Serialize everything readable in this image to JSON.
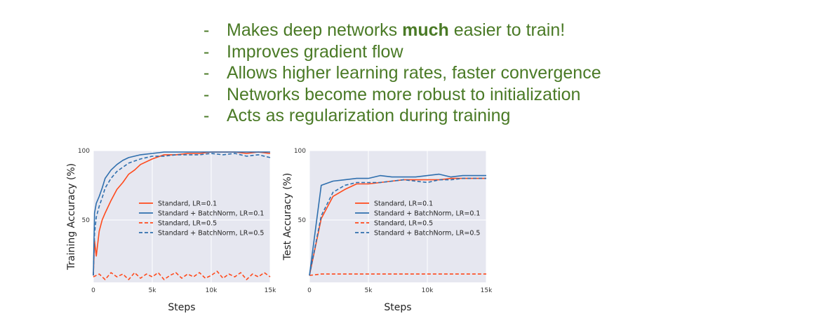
{
  "bullets": [
    {
      "prefix": "Makes deep networks ",
      "bold": "much",
      "suffix": " easier to train!"
    },
    {
      "prefix": "Improves gradient flow",
      "bold": "",
      "suffix": ""
    },
    {
      "prefix": "Allows higher learning rates, faster convergence",
      "bold": "",
      "suffix": ""
    },
    {
      "prefix": "Networks become more robust to initialization",
      "bold": "",
      "suffix": ""
    },
    {
      "prefix": "Acts as regularization during training",
      "bold": "",
      "suffix": ""
    }
  ],
  "bullet_marker": "-",
  "colors": {
    "text_green": "#4a7a26",
    "standard": "#ff4a1c",
    "batchnorm": "#2f6fae",
    "plot_bg": "#e6e7f0"
  },
  "chart_data": [
    {
      "type": "line",
      "xlabel": "Steps",
      "ylabel": "Training Accuracy (%)",
      "xlim": [
        0,
        15000
      ],
      "ylim": [
        5,
        100
      ],
      "xticks": [
        {
          "v": 0,
          "label": "0"
        },
        {
          "v": 5000,
          "label": "5k"
        },
        {
          "v": 10000,
          "label": "10k"
        },
        {
          "v": 15000,
          "label": "15k"
        }
      ],
      "yticks": [
        {
          "v": 50,
          "label": "50"
        },
        {
          "v": 100,
          "label": "100"
        }
      ],
      "legend_position": "center-right",
      "series": [
        {
          "name": "Standard, LR=0.1",
          "color": "#ff4a1c",
          "dash": false,
          "x": [
            0,
            100,
            250,
            500,
            750,
            1000,
            1500,
            2000,
            2500,
            3000,
            3500,
            4000,
            5000,
            6000,
            7000,
            8000,
            9000,
            10000,
            11000,
            12000,
            13000,
            14000,
            15000
          ],
          "y": [
            10,
            35,
            24,
            42,
            50,
            55,
            64,
            72,
            77,
            83,
            86,
            90,
            94,
            97,
            97,
            98,
            98,
            99,
            99,
            99,
            98,
            99,
            98
          ]
        },
        {
          "name": "Standard + BatchNorm, LR=0.1",
          "color": "#2f6fae",
          "dash": false,
          "x": [
            0,
            100,
            250,
            500,
            750,
            1000,
            1500,
            2000,
            2500,
            3000,
            4000,
            5000,
            6000,
            7000,
            8000,
            9000,
            10000,
            11000,
            12000,
            13000,
            14000,
            15000
          ],
          "y": [
            10,
            55,
            62,
            67,
            73,
            80,
            86,
            90,
            93,
            95,
            97,
            98,
            99,
            99,
            99,
            99,
            99,
            99,
            99,
            99,
            99,
            99
          ]
        },
        {
          "name": "Standard, LR=0.5",
          "color": "#ff4a1c",
          "dash": true,
          "x": [
            0,
            500,
            1000,
            1500,
            2000,
            2500,
            3000,
            3500,
            4000,
            4500,
            5000,
            5500,
            6000,
            6500,
            7000,
            7500,
            8000,
            8500,
            9000,
            9500,
            10000,
            10500,
            11000,
            11500,
            12000,
            12500,
            13000,
            13500,
            14000,
            14500,
            15000
          ],
          "y": [
            9,
            11,
            7,
            12,
            9,
            11,
            7,
            12,
            8,
            11,
            9,
            12,
            7,
            10,
            12,
            8,
            11,
            9,
            12,
            8,
            10,
            13,
            8,
            11,
            9,
            12,
            7,
            11,
            9,
            12,
            9
          ]
        },
        {
          "name": "Standard + BatchNorm, LR=0.5",
          "color": "#2f6fae",
          "dash": true,
          "x": [
            0,
            100,
            250,
            500,
            750,
            1000,
            1500,
            2000,
            2500,
            3000,
            4000,
            5000,
            6000,
            7000,
            8000,
            9000,
            10000,
            11000,
            12000,
            13000,
            14000,
            15000
          ],
          "y": [
            10,
            40,
            52,
            60,
            66,
            73,
            80,
            85,
            88,
            91,
            94,
            96,
            96,
            97,
            97,
            97,
            98,
            97,
            98,
            96,
            97,
            95
          ]
        }
      ]
    },
    {
      "type": "line",
      "xlabel": "Steps",
      "ylabel": "Test Accuracy (%)",
      "xlim": [
        0,
        15000
      ],
      "ylim": [
        5,
        100
      ],
      "xticks": [
        {
          "v": 0,
          "label": "0"
        },
        {
          "v": 5000,
          "label": "5k"
        },
        {
          "v": 10000,
          "label": "10k"
        },
        {
          "v": 15000,
          "label": "15k"
        }
      ],
      "yticks": [
        {
          "v": 50,
          "label": "50"
        },
        {
          "v": 100,
          "label": "100"
        }
      ],
      "legend_position": "center-right",
      "series": [
        {
          "name": "Standard, LR=0.1",
          "color": "#ff4a1c",
          "dash": false,
          "x": [
            0,
            1000,
            2000,
            3000,
            4000,
            5000,
            6000,
            7000,
            8000,
            9000,
            10000,
            11000,
            12000,
            13000,
            14000,
            15000
          ],
          "y": [
            10,
            51,
            67,
            72,
            76,
            76,
            77,
            78,
            79,
            79,
            79,
            79,
            80,
            80,
            80,
            80
          ]
        },
        {
          "name": "Standard + BatchNorm, LR=0.1",
          "color": "#2f6fae",
          "dash": false,
          "x": [
            0,
            1000,
            2000,
            3000,
            4000,
            5000,
            6000,
            7000,
            8000,
            9000,
            10000,
            11000,
            12000,
            13000,
            14000,
            15000
          ],
          "y": [
            10,
            75,
            78,
            79,
            80,
            80,
            82,
            81,
            81,
            81,
            82,
            83,
            81,
            82,
            82,
            82
          ]
        },
        {
          "name": "Standard, LR=0.5",
          "color": "#ff4a1c",
          "dash": true,
          "x": [
            0,
            1000,
            15000
          ],
          "y": [
            10,
            11,
            11
          ]
        },
        {
          "name": "Standard + BatchNorm, LR=0.5",
          "color": "#2f6fae",
          "dash": true,
          "x": [
            0,
            1000,
            2000,
            3000,
            4000,
            5000,
            6000,
            7000,
            8000,
            9000,
            10000,
            11000,
            12000,
            13000,
            14000,
            15000
          ],
          "y": [
            10,
            53,
            70,
            75,
            77,
            77,
            77,
            78,
            79,
            78,
            77,
            79,
            79,
            80,
            80,
            80
          ]
        }
      ]
    }
  ]
}
